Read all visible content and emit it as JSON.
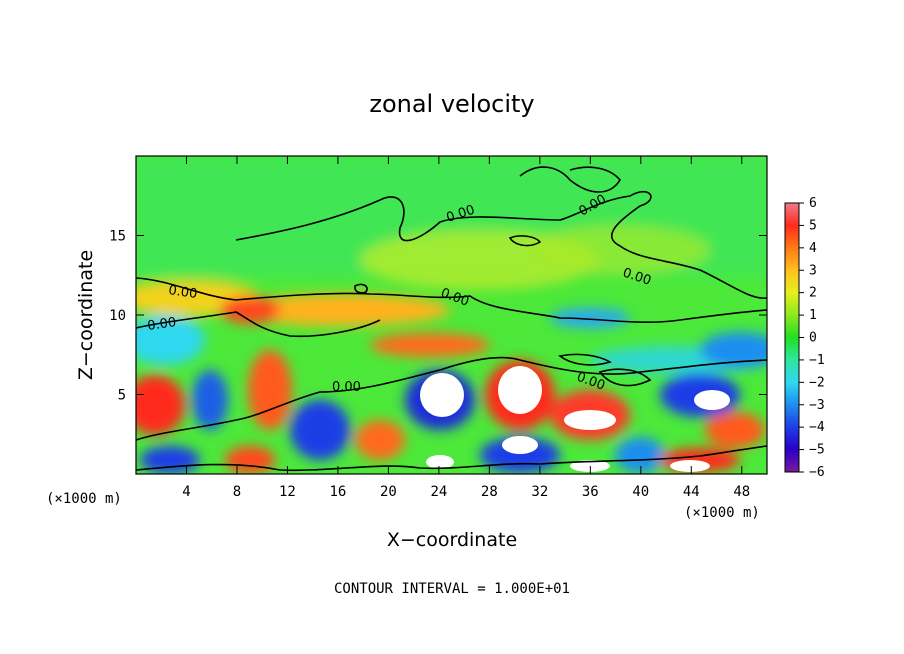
{
  "chart_data": {
    "type": "heatmap",
    "title": "zonal velocity",
    "xlabel": "X−coordinate",
    "ylabel": "Z−coordinate",
    "x_unit_left": "(×1000 m)",
    "x_unit_right": "(×1000 m)",
    "xlim": [
      0,
      50
    ],
    "ylim": [
      0,
      20
    ],
    "x_ticks": [
      4,
      8,
      12,
      16,
      20,
      24,
      28,
      32,
      36,
      40,
      44,
      48
    ],
    "y_ticks": [
      5,
      10,
      15
    ],
    "colorbar": {
      "range": [
        -6,
        6
      ],
      "ticks": [
        6,
        5,
        4,
        3,
        2,
        1,
        0,
        -1,
        -2,
        -3,
        -4,
        -5,
        -6
      ],
      "tick_labels": [
        "6",
        "5",
        "4",
        "3",
        "2",
        "1",
        "0",
        "−1",
        "−2",
        "−3",
        "−4",
        "−5",
        "−6"
      ],
      "colors": [
        "#7a1a9a",
        "#2a00c8",
        "#1e3ee6",
        "#1e8ef0",
        "#2ed8ee",
        "#2ee6a0",
        "#22e022",
        "#8ee81e",
        "#e6f01e",
        "#ffbf1e",
        "#ff7a14",
        "#ff2a1e",
        "#f07a8a"
      ]
    },
    "contour_level": 0.0,
    "contour_labels": [
      "0.00",
      "0.00",
      "0.00",
      "0.00",
      "0.00",
      "0.00",
      "0.00",
      "0.00"
    ],
    "contour_interval_text": "CONTOUR INTERVAL = 1.000E+01",
    "grid": false,
    "legend": "colorbar right"
  }
}
